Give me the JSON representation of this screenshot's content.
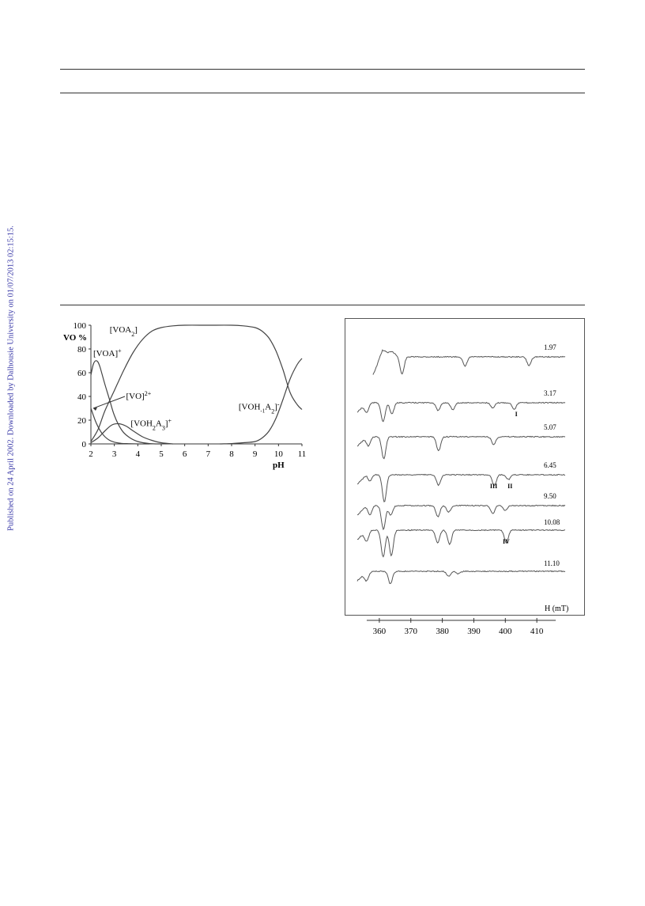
{
  "side_stamp": "Published on 24 April 2002. Downloaded by Dalhousie University on 01/07/2013 02:15:15.",
  "chart_data": [
    {
      "type": "line",
      "xlabel": "pH",
      "ylabel": "VO %",
      "xlim": [
        2,
        11
      ],
      "ylim": [
        0,
        100
      ],
      "x_ticks": [
        "2",
        "3",
        "4",
        "5",
        "6",
        "7",
        "8",
        "9",
        "10",
        "11"
      ],
      "y_ticks": [
        "0",
        "20",
        "40",
        "60",
        "80",
        "100"
      ],
      "series": [
        {
          "name": "[VO]2+",
          "label_main": "[VO]",
          "label_sup": "2+",
          "x": [
            2.0,
            2.2,
            2.4,
            2.6,
            2.8,
            3.0,
            3.3,
            3.6,
            4.0,
            4.5
          ],
          "y": [
            30,
            19,
            11,
            6,
            3,
            1.5,
            0.5,
            0.2,
            0,
            0
          ]
        },
        {
          "name": "[VOA]+",
          "label_main": "[VOA]",
          "label_sup": "+",
          "x": [
            2.0,
            2.1,
            2.2,
            2.3,
            2.4,
            2.6,
            2.8,
            3.0,
            3.3,
            3.6,
            4.0,
            4.5,
            5.0
          ],
          "y": [
            58,
            67,
            70,
            69,
            64,
            50,
            37,
            24,
            12,
            6,
            2,
            0.3,
            0
          ]
        },
        {
          "name": "[VOH2A3]+",
          "label_main": "[VOH",
          "label_sub1": "2",
          "label_mid": "A",
          "label_sub2": "3",
          "label_sup": "+",
          "x": [
            2.0,
            2.3,
            2.6,
            2.9,
            3.2,
            3.5,
            3.8,
            4.2,
            4.6,
            5.0,
            5.5
          ],
          "y": [
            1,
            5,
            11,
            16,
            17,
            15,
            11,
            6,
            3,
            1,
            0
          ]
        },
        {
          "name": "[VOA2]",
          "label_main": "[VOA",
          "label_sub1": "2",
          "label_end": "]",
          "x": [
            2.0,
            2.3,
            2.6,
            3.0,
            3.4,
            3.8,
            4.2,
            4.6,
            5.0,
            5.5,
            6.0,
            7.0,
            8.0,
            8.5,
            9.0,
            9.3,
            9.6,
            9.9,
            10.2,
            10.5,
            10.8,
            11.0
          ],
          "y": [
            2,
            12,
            28,
            45,
            62,
            77,
            88,
            95,
            98,
            99.5,
            100,
            100,
            100,
            99.5,
            98,
            95,
            89,
            78,
            62,
            43,
            33,
            29
          ]
        },
        {
          "name": "[VOH-1A2]-",
          "label_main": "[VOH",
          "label_sub1": "-1",
          "label_mid": "A",
          "label_sub2": "2",
          "label_end": "]",
          "label_sup": "-",
          "x": [
            7.5,
            8.0,
            8.5,
            9.0,
            9.3,
            9.6,
            9.9,
            10.2,
            10.5,
            10.8,
            11.0
          ],
          "y": [
            0,
            0.3,
            1,
            2,
            5,
            11,
            22,
            38,
            55,
            67,
            72
          ]
        }
      ]
    },
    {
      "type": "line",
      "xlabel": "H (mT)",
      "xlim": [
        353,
        420
      ],
      "x_ticks": [
        "360",
        "370",
        "380",
        "390",
        "400",
        "410"
      ],
      "spectra": [
        {
          "label": "1.97",
          "x_start": 358,
          "x_end": 419,
          "dips": [
            [
              367.2,
              22
            ],
            [
              387.2,
              12
            ],
            [
              407.5,
              11
            ]
          ],
          "bumps": [
            [
              361.0,
              -8
            ],
            [
              364.0,
              -6
            ]
          ]
        },
        {
          "label": "3.17",
          "x_start": 353,
          "x_end": 419,
          "dips": [
            [
              356.0,
              12
            ],
            [
              361.2,
              24
            ],
            [
              364.0,
              14
            ],
            [
              378.7,
              10
            ],
            [
              383.3,
              9
            ],
            [
              396.0,
              7
            ],
            [
              402.8,
              8
            ]
          ],
          "bumps": []
        },
        {
          "label": "5.07",
          "x_start": 353,
          "x_end": 419,
          "dips": [
            [
              356.5,
              12
            ],
            [
              361.4,
              28
            ],
            [
              378.8,
              18
            ],
            [
              396.3,
              10
            ]
          ],
          "bumps": []
        },
        {
          "label": "6.45",
          "x_start": 353,
          "x_end": 419,
          "dips": [
            [
              357.0,
              8
            ],
            [
              361.6,
              34
            ],
            [
              378.8,
              13
            ],
            [
              396.5,
              14
            ],
            [
              401.0,
              6
            ]
          ],
          "bumps": []
        },
        {
          "label": "9.50",
          "x_start": 353,
          "x_end": 419,
          "dips": [
            [
              357.0,
              12
            ],
            [
              361.3,
              30
            ],
            [
              363.6,
              12
            ],
            [
              378.6,
              14
            ],
            [
              382.0,
              8
            ],
            [
              396.0,
              10
            ],
            [
              400.0,
              6
            ]
          ],
          "bumps": []
        },
        {
          "label": "10.08",
          "x_start": 353,
          "x_end": 419,
          "dips": [
            [
              356.0,
              14
            ],
            [
              361.2,
              34
            ],
            [
              363.8,
              32
            ],
            [
              378.5,
              16
            ],
            [
              382.3,
              18
            ],
            [
              400.3,
              16
            ]
          ],
          "bumps": []
        },
        {
          "label": "11.10",
          "x_start": 353,
          "x_end": 419,
          "dips": [
            [
              356.0,
              12
            ],
            [
              363.5,
              16
            ],
            [
              382.0,
              6
            ],
            [
              385.0,
              3
            ]
          ],
          "bumps": []
        }
      ],
      "annotations": [
        {
          "text": "I",
          "x": 403.5,
          "trace": 1
        },
        {
          "text": "III",
          "x": 396.3,
          "trace": 3
        },
        {
          "text": "II",
          "x": 401.5,
          "trace": 3
        },
        {
          "text": "IV",
          "x": 400.3,
          "trace": 5
        }
      ]
    }
  ]
}
